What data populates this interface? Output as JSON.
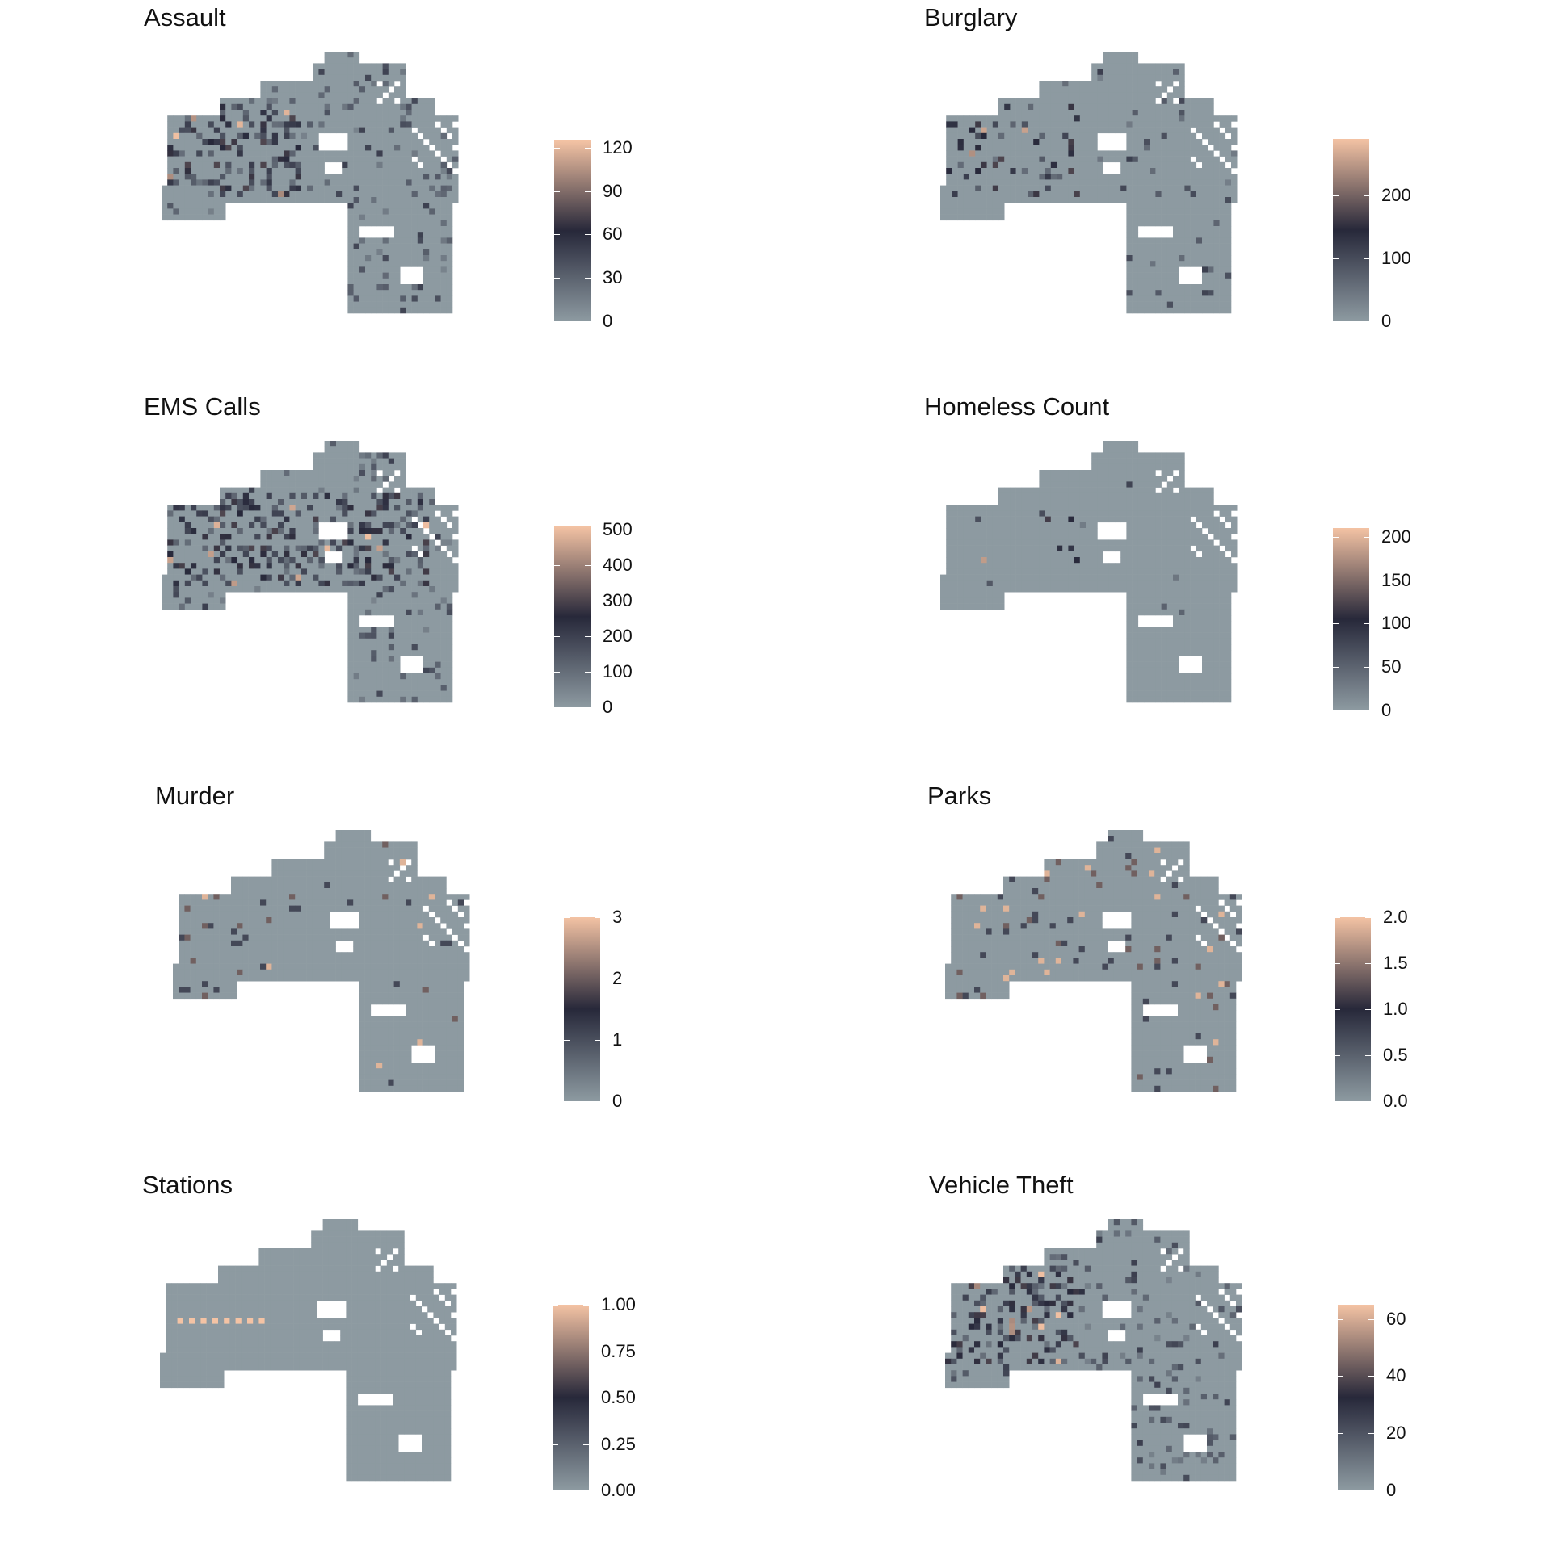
{
  "colors": {
    "low": "#8d9aa1",
    "mid": "#27283a",
    "high": "#f4c3a4"
  },
  "chart_data": [
    {
      "type": "heatmap",
      "title": "Assault",
      "scale_max": 125,
      "breaks": [
        0,
        30,
        60,
        90,
        120
      ],
      "break_labels": [
        "0",
        "30",
        "60",
        "90",
        "120"
      ],
      "hotspot_density": "high",
      "hotspot_region": "west"
    },
    {
      "type": "heatmap",
      "title": "Burglary",
      "scale_max": 290,
      "breaks": [
        0,
        100,
        200
      ],
      "break_labels": [
        "0",
        "100",
        "200"
      ],
      "hotspot_density": "medium",
      "hotspot_region": "west"
    },
    {
      "type": "heatmap",
      "title": "EMS Calls",
      "scale_max": 510,
      "breaks": [
        0,
        100,
        200,
        300,
        400,
        500
      ],
      "break_labels": [
        "0",
        "100",
        "200",
        "300",
        "400",
        "500"
      ],
      "hotspot_density": "high",
      "hotspot_region": "central"
    },
    {
      "type": "heatmap",
      "title": "Homeless Count",
      "scale_max": 210,
      "breaks": [
        0,
        50,
        100,
        150,
        200
      ],
      "break_labels": [
        "0",
        "50",
        "100",
        "150",
        "200"
      ],
      "hotspot_density": "sparse",
      "hotspot_region": "west"
    },
    {
      "type": "heatmap",
      "title": "Murder",
      "scale_max": 3,
      "breaks": [
        0,
        1,
        2,
        3
      ],
      "break_labels": [
        "0",
        "1",
        "2",
        "3"
      ],
      "hotspot_density": "points",
      "hotspot_region": "west"
    },
    {
      "type": "heatmap",
      "title": "Parks",
      "scale_max": 2,
      "breaks": [
        0,
        0.5,
        1,
        1.5,
        2
      ],
      "break_labels": [
        "0.0",
        "0.5",
        "1.0",
        "1.5",
        "2.0"
      ],
      "hotspot_density": "points",
      "hotspot_region": "all"
    },
    {
      "type": "heatmap",
      "title": "Stations",
      "scale_max": 1,
      "breaks": [
        0,
        0.25,
        0.5,
        0.75,
        1
      ],
      "break_labels": [
        "0.00",
        "0.25",
        "0.50",
        "0.75",
        "1.00"
      ],
      "hotspot_density": "row",
      "hotspot_region": "west"
    },
    {
      "type": "heatmap",
      "title": "Vehicle Theft",
      "scale_max": 65,
      "breaks": [
        0,
        20,
        40,
        60
      ],
      "break_labels": [
        "0",
        "20",
        "40",
        "60"
      ],
      "hotspot_density": "high",
      "hotspot_region": "west"
    }
  ]
}
